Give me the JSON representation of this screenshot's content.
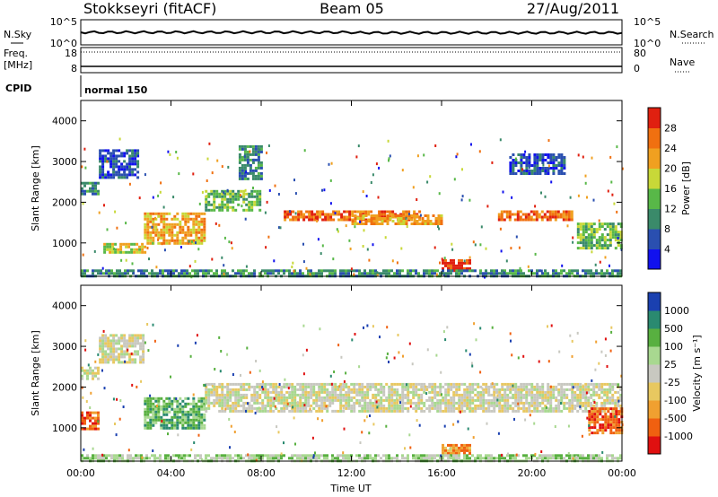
{
  "header": {
    "station": "Stokkseyri (fitACF)",
    "beam": "Beam 05",
    "date": "27/Aug/2011"
  },
  "panels": {
    "nsky": {
      "label_top": "N.Sky",
      "left_ticks": [
        "10^5",
        "10^0"
      ],
      "right_ticks": [
        "10^5",
        "10^0"
      ],
      "right_label": "N.Search"
    },
    "freq": {
      "label_top": "Freq.",
      "label_unit": "[MHz]",
      "left_ticks": [
        "18",
        "8"
      ],
      "right_ticks": [
        "80",
        "0"
      ],
      "right_label": "Nave"
    },
    "cpid": {
      "label": "CPID",
      "program": "normal 150"
    }
  },
  "chart_data": [
    {
      "type": "heatmap",
      "name": "power",
      "ylabel": "Slant Range [km]",
      "xlabel": "",
      "ylim": [
        180,
        4500
      ],
      "yticks": [
        "1000",
        "2000",
        "3000",
        "4000"
      ],
      "xlim_hours": [
        0,
        24
      ],
      "colorbar": {
        "label": "Power [dB]",
        "ticks": [
          "4",
          "8",
          "12",
          "16",
          "20",
          "24",
          "28"
        ],
        "colors": [
          "#1111ee",
          "#2a4fb0",
          "#3a8a6a",
          "#58b848",
          "#c8d838",
          "#f0a020",
          "#f07010",
          "#e02010"
        ]
      },
      "features": [
        {
          "t0": 0.0,
          "t1": 0.8,
          "r0": 2200,
          "r1": 2500,
          "level": 2
        },
        {
          "t0": 0.8,
          "t1": 2.5,
          "r0": 2600,
          "r1": 3300,
          "level": 1
        },
        {
          "t0": 2.8,
          "t1": 5.5,
          "r0": 1000,
          "r1": 1750,
          "level": 5
        },
        {
          "t0": 1.0,
          "t1": 2.8,
          "r0": 750,
          "r1": 1000,
          "level": 4
        },
        {
          "t0": 5.5,
          "t1": 8.0,
          "r0": 1800,
          "r1": 2300,
          "level": 3
        },
        {
          "t0": 7.0,
          "t1": 8.0,
          "r0": 2600,
          "r1": 3400,
          "level": 2
        },
        {
          "t0": 9.0,
          "t1": 15.0,
          "r0": 1550,
          "r1": 1800,
          "level": 6
        },
        {
          "t0": 12.0,
          "t1": 16.0,
          "r0": 1500,
          "r1": 1700,
          "level": 5
        },
        {
          "t0": 16.0,
          "t1": 17.3,
          "r0": 400,
          "r1": 600,
          "level": 7
        },
        {
          "t0": 18.5,
          "t1": 21.8,
          "r0": 1550,
          "r1": 1800,
          "level": 6
        },
        {
          "t0": 19.0,
          "t1": 21.5,
          "r0": 2700,
          "r1": 3200,
          "level": 1
        },
        {
          "t0": 22.0,
          "t1": 24.0,
          "r0": 900,
          "r1": 1500,
          "level": 3
        },
        {
          "t0": 0.0,
          "t1": 24.0,
          "r0": 180,
          "r1": 350,
          "level": 2
        }
      ]
    },
    {
      "type": "heatmap",
      "name": "velocity",
      "ylabel": "Slant Range [km]",
      "xlabel": "Time UT",
      "ylim": [
        180,
        4500
      ],
      "yticks": [
        "1000",
        "2000",
        "3000",
        "4000"
      ],
      "xticks": [
        "00:00",
        "04:00",
        "08:00",
        "12:00",
        "16:00",
        "20:00",
        "00:00"
      ],
      "xlim_hours": [
        0,
        24
      ],
      "colorbar": {
        "label": "Velocity [m s⁻¹]",
        "ticks": [
          "1000",
          "500",
          "100",
          "25",
          "-25",
          "-100",
          "-500",
          "-1000"
        ],
        "colors": [
          "#e01010",
          "#f06010",
          "#f0a030",
          "#e8c860",
          "#c8c8c0",
          "#a8d890",
          "#58b040",
          "#2a8a70",
          "#1a40b0"
        ]
      },
      "features": [
        {
          "t0": 0.0,
          "t1": 0.8,
          "r0": 2200,
          "r1": 2500,
          "level": 4
        },
        {
          "t0": 0.8,
          "t1": 2.8,
          "r0": 2600,
          "r1": 3300,
          "level": 4
        },
        {
          "t0": 2.8,
          "t1": 5.5,
          "r0": 1000,
          "r1": 1750,
          "level": 6
        },
        {
          "t0": 0.0,
          "t1": 0.8,
          "r0": 1000,
          "r1": 1400,
          "level": 1
        },
        {
          "t0": 5.5,
          "t1": 24.0,
          "r0": 1400,
          "r1": 2100,
          "level": 4
        },
        {
          "t0": 16.0,
          "t1": 17.3,
          "r0": 400,
          "r1": 600,
          "level": 2
        },
        {
          "t0": 22.5,
          "t1": 24.0,
          "r0": 900,
          "r1": 1500,
          "level": 1
        },
        {
          "t0": 0.0,
          "t1": 24.0,
          "r0": 180,
          "r1": 350,
          "level": 5
        }
      ]
    }
  ]
}
